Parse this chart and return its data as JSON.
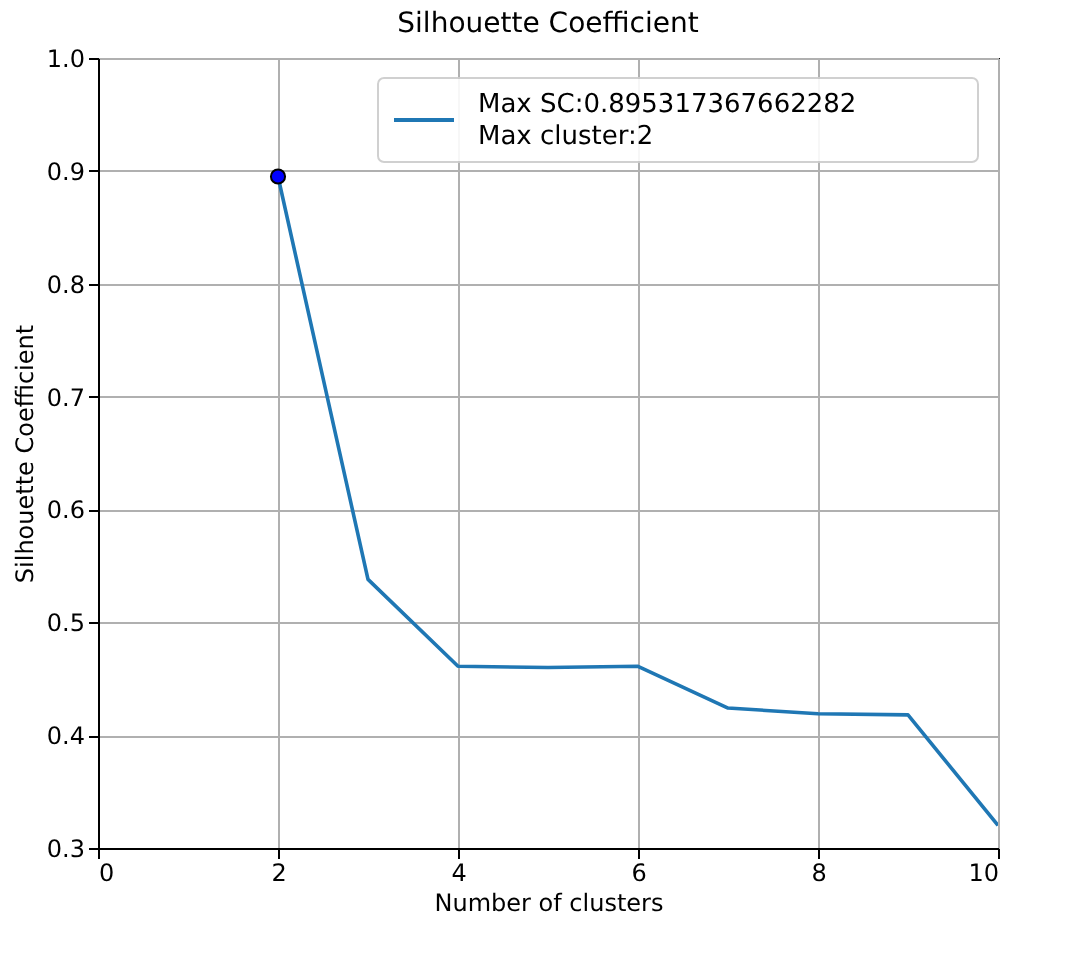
{
  "chart_data": {
    "type": "line",
    "title": "Silhouette Coefficient",
    "xlabel": "Number of clusters",
    "ylabel": "Silhouette Coefficient",
    "x": [
      2,
      3,
      4,
      5,
      6,
      7,
      8,
      9,
      10
    ],
    "series": [
      {
        "name": "Max SC:0.895317367662282\nMax cluster:2",
        "color": "#1f77b4",
        "values": [
          0.895,
          0.538,
          0.461,
          0.46,
          0.461,
          0.424,
          0.419,
          0.418,
          0.32
        ]
      },
      {
        "type": "scatter",
        "x": [
          2
        ],
        "color": "#0000ff",
        "marker": "circle",
        "values": [
          0.895
        ]
      }
    ],
    "xlim": [
      0,
      10
    ],
    "xticks": [
      0,
      2,
      4,
      6,
      8,
      10
    ],
    "ylim": [
      0.3,
      1.0
    ],
    "yticks": [
      0.3,
      0.4,
      0.5,
      0.6,
      0.7,
      0.8,
      0.9,
      {
        "value": 1,
        "label": "1.0"
      }
    ],
    "grid": true,
    "legend": "top right"
  }
}
